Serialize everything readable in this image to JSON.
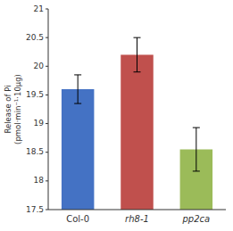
{
  "chart_data": {
    "type": "bar",
    "categories": [
      "Col-0",
      "rh8-1",
      "pp2ca"
    ],
    "values": [
      19.6,
      20.2,
      18.55
    ],
    "errors": [
      0.25,
      0.3,
      0.38
    ],
    "colors": [
      "#4472C4",
      "#C0504D",
      "#9BBB59"
    ],
    "ylabel": "Release of Pi\n(pmol·min⁻¹·10μg)",
    "ylim": [
      17.5,
      21.0
    ],
    "yticks": [
      17.5,
      18,
      18.5,
      19,
      19.5,
      20,
      20.5,
      21
    ],
    "grid": false
  }
}
